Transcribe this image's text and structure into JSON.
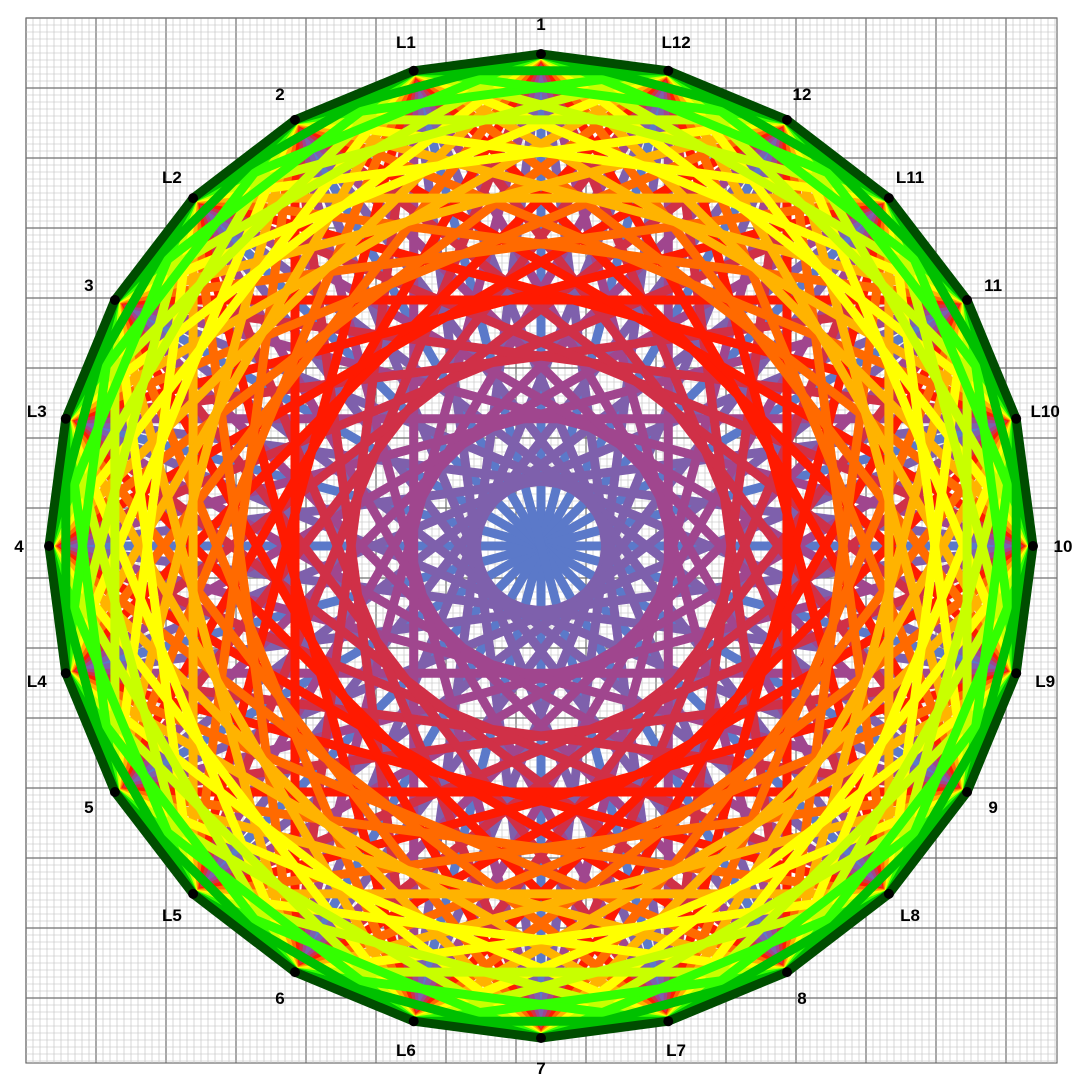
{
  "vertices": [
    {
      "label": "1"
    },
    {
      "label": "L12"
    },
    {
      "label": "12"
    },
    {
      "label": "L11"
    },
    {
      "label": "11"
    },
    {
      "label": "L10"
    },
    {
      "label": "10"
    },
    {
      "label": "L9"
    },
    {
      "label": "9"
    },
    {
      "label": "L8"
    },
    {
      "label": "8"
    },
    {
      "label": "L7"
    },
    {
      "label": "7"
    },
    {
      "label": "L6"
    },
    {
      "label": "6"
    },
    {
      "label": "L5"
    },
    {
      "label": "5"
    },
    {
      "label": "L4"
    },
    {
      "label": "4"
    },
    {
      "label": "L3"
    },
    {
      "label": "3"
    },
    {
      "label": "L2"
    },
    {
      "label": "2"
    },
    {
      "label": "L1"
    }
  ],
  "palette": {
    "near": [
      "#004d00",
      "#00c000",
      "#33ff00",
      "#c8ff00",
      "#ffff00",
      "#ffb300",
      "#ff6a00",
      "#ff1a00"
    ],
    "far": "#5b79c9",
    "mid": "#a0468e",
    "grid_minor": "#bdbdbd",
    "grid_major": "#6f6f6f",
    "vertex": "#000000"
  }
}
